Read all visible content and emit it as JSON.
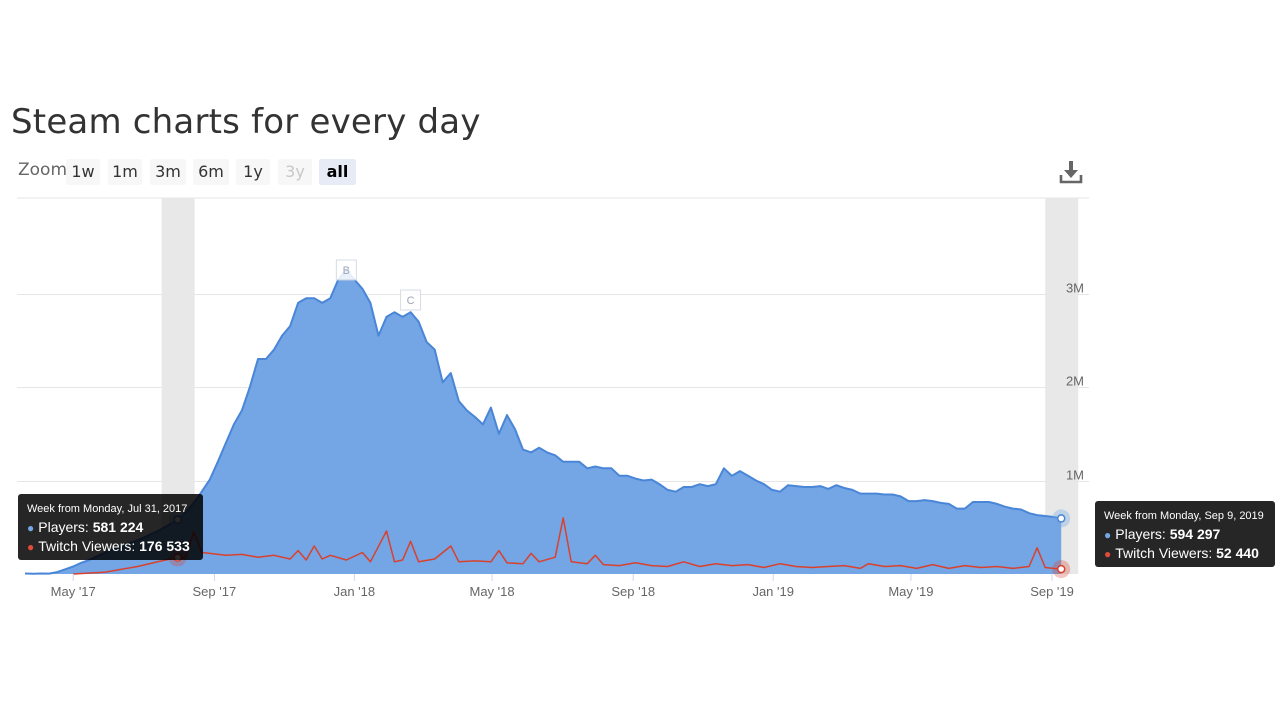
{
  "page": {
    "title": "Steam charts for every day"
  },
  "zoom": {
    "label": "Zoom",
    "buttons": [
      {
        "label": "1w",
        "state": "normal"
      },
      {
        "label": "1m",
        "state": "normal"
      },
      {
        "label": "3m",
        "state": "normal"
      },
      {
        "label": "6m",
        "state": "normal"
      },
      {
        "label": "1y",
        "state": "normal"
      },
      {
        "label": "3y",
        "state": "disabled"
      },
      {
        "label": "all",
        "state": "active"
      }
    ]
  },
  "export": {
    "icon": "download-icon"
  },
  "colors": {
    "players_line": "#4a86d8",
    "players_fill": "#74a5e4",
    "twitch_line": "#d9412e",
    "grid": "#e6e6e6",
    "axis_text": "#666666",
    "crosshair": "#e8e8e8"
  },
  "chart_data": {
    "type": "area",
    "title": "",
    "x_tick_labels": [
      "May '17",
      "Sep '17",
      "Jan '18",
      "May '18",
      "Sep '18",
      "Jan '19",
      "May '19",
      "Sep '19"
    ],
    "y_tick_labels": [
      "1M",
      "2M",
      "3M"
    ],
    "y_ticks": [
      1000000,
      2000000,
      3000000
    ],
    "ylim": [
      0,
      4000000
    ],
    "y_axis_side": "right",
    "grid": true,
    "flags": [
      "B",
      "C"
    ],
    "flag_dates": [
      "2017-12-25",
      "2018-02-19"
    ],
    "series": [
      {
        "name": "Players",
        "points": [
          [
            "2017-03-20",
            5000
          ],
          [
            "2017-03-27",
            2000
          ],
          [
            "2017-04-03",
            5000
          ],
          [
            "2017-04-10",
            4000
          ],
          [
            "2017-04-17",
            20000
          ],
          [
            "2017-04-24",
            50000
          ],
          [
            "2017-05-01",
            80000
          ],
          [
            "2017-05-08",
            120000
          ],
          [
            "2017-05-15",
            150000
          ],
          [
            "2017-05-22",
            190000
          ],
          [
            "2017-05-29",
            230000
          ],
          [
            "2017-06-05",
            270000
          ],
          [
            "2017-06-12",
            300000
          ],
          [
            "2017-06-19",
            330000
          ],
          [
            "2017-06-26",
            360000
          ],
          [
            "2017-07-03",
            400000
          ],
          [
            "2017-07-10",
            440000
          ],
          [
            "2017-07-17",
            480000
          ],
          [
            "2017-07-24",
            530000
          ],
          [
            "2017-07-31",
            581224
          ],
          [
            "2017-08-07",
            660000
          ],
          [
            "2017-08-14",
            760000
          ],
          [
            "2017-08-21",
            880000
          ],
          [
            "2017-08-28",
            1010000
          ],
          [
            "2017-09-04",
            1200000
          ],
          [
            "2017-09-11",
            1400000
          ],
          [
            "2017-09-18",
            1600000
          ],
          [
            "2017-09-25",
            1750000
          ],
          [
            "2017-10-02",
            2000000
          ],
          [
            "2017-10-09",
            2300000
          ],
          [
            "2017-10-16",
            2300000
          ],
          [
            "2017-10-23",
            2400000
          ],
          [
            "2017-10-30",
            2550000
          ],
          [
            "2017-11-06",
            2650000
          ],
          [
            "2017-11-13",
            2900000
          ],
          [
            "2017-11-20",
            2950000
          ],
          [
            "2017-11-27",
            2950000
          ],
          [
            "2017-12-04",
            2900000
          ],
          [
            "2017-12-11",
            2950000
          ],
          [
            "2017-12-18",
            3150000
          ],
          [
            "2017-12-25",
            3250000
          ],
          [
            "2018-01-01",
            3150000
          ],
          [
            "2018-01-08",
            3050000
          ],
          [
            "2018-01-15",
            2900000
          ],
          [
            "2018-01-22",
            2550000
          ],
          [
            "2018-01-29",
            2750000
          ],
          [
            "2018-02-05",
            2800000
          ],
          [
            "2018-02-12",
            2750000
          ],
          [
            "2018-02-19",
            2800000
          ],
          [
            "2018-02-26",
            2700000
          ],
          [
            "2018-03-05",
            2480000
          ],
          [
            "2018-03-12",
            2400000
          ],
          [
            "2018-03-19",
            2050000
          ],
          [
            "2018-03-26",
            2150000
          ],
          [
            "2018-04-02",
            1850000
          ],
          [
            "2018-04-09",
            1750000
          ],
          [
            "2018-04-16",
            1680000
          ],
          [
            "2018-04-23",
            1600000
          ],
          [
            "2018-04-30",
            1780000
          ],
          [
            "2018-05-07",
            1500000
          ],
          [
            "2018-05-14",
            1700000
          ],
          [
            "2018-05-21",
            1550000
          ],
          [
            "2018-05-28",
            1330000
          ],
          [
            "2018-06-04",
            1300000
          ],
          [
            "2018-06-11",
            1350000
          ],
          [
            "2018-06-18",
            1300000
          ],
          [
            "2018-06-25",
            1270000
          ],
          [
            "2018-07-02",
            1200000
          ],
          [
            "2018-07-09",
            1200000
          ],
          [
            "2018-07-16",
            1200000
          ],
          [
            "2018-07-23",
            1130000
          ],
          [
            "2018-07-30",
            1150000
          ],
          [
            "2018-08-06",
            1130000
          ],
          [
            "2018-08-13",
            1130000
          ],
          [
            "2018-08-20",
            1050000
          ],
          [
            "2018-08-27",
            1050000
          ],
          [
            "2018-09-03",
            1020000
          ],
          [
            "2018-09-10",
            1000000
          ],
          [
            "2018-09-17",
            1010000
          ],
          [
            "2018-09-24",
            960000
          ],
          [
            "2018-10-01",
            900000
          ],
          [
            "2018-10-08",
            880000
          ],
          [
            "2018-10-15",
            930000
          ],
          [
            "2018-10-22",
            930000
          ],
          [
            "2018-10-29",
            960000
          ],
          [
            "2018-11-05",
            940000
          ],
          [
            "2018-11-12",
            960000
          ],
          [
            "2018-11-19",
            1130000
          ],
          [
            "2018-11-26",
            1050000
          ],
          [
            "2018-12-03",
            1100000
          ],
          [
            "2018-12-10",
            1050000
          ],
          [
            "2018-12-17",
            1000000
          ],
          [
            "2018-12-24",
            960000
          ],
          [
            "2018-12-31",
            900000
          ],
          [
            "2019-01-07",
            880000
          ],
          [
            "2019-01-14",
            950000
          ],
          [
            "2019-01-21",
            940000
          ],
          [
            "2019-01-28",
            930000
          ],
          [
            "2019-02-04",
            930000
          ],
          [
            "2019-02-11",
            940000
          ],
          [
            "2019-02-18",
            910000
          ],
          [
            "2019-02-25",
            950000
          ],
          [
            "2019-03-04",
            920000
          ],
          [
            "2019-03-11",
            900000
          ],
          [
            "2019-03-18",
            860000
          ],
          [
            "2019-03-25",
            860000
          ],
          [
            "2019-04-01",
            860000
          ],
          [
            "2019-04-08",
            850000
          ],
          [
            "2019-04-15",
            850000
          ],
          [
            "2019-04-22",
            830000
          ],
          [
            "2019-04-29",
            780000
          ],
          [
            "2019-05-06",
            780000
          ],
          [
            "2019-05-13",
            790000
          ],
          [
            "2019-05-20",
            780000
          ],
          [
            "2019-05-27",
            760000
          ],
          [
            "2019-06-03",
            750000
          ],
          [
            "2019-06-10",
            700000
          ],
          [
            "2019-06-17",
            700000
          ],
          [
            "2019-06-24",
            770000
          ],
          [
            "2019-07-01",
            770000
          ],
          [
            "2019-07-08",
            770000
          ],
          [
            "2019-07-15",
            750000
          ],
          [
            "2019-07-22",
            720000
          ],
          [
            "2019-07-29",
            700000
          ],
          [
            "2019-08-05",
            690000
          ],
          [
            "2019-08-12",
            650000
          ],
          [
            "2019-08-19",
            630000
          ],
          [
            "2019-08-26",
            620000
          ],
          [
            "2019-09-02",
            610000
          ],
          [
            "2019-09-09",
            594297
          ]
        ]
      },
      {
        "name": "Twitch Viewers",
        "points": [
          [
            "2017-05-01",
            0
          ],
          [
            "2017-05-29",
            20000
          ],
          [
            "2017-06-26",
            80000
          ],
          [
            "2017-07-17",
            140000
          ],
          [
            "2017-07-31",
            176533
          ],
          [
            "2017-08-07",
            170000
          ],
          [
            "2017-08-14",
            450000
          ],
          [
            "2017-08-21",
            230000
          ],
          [
            "2017-08-28",
            220000
          ],
          [
            "2017-09-11",
            200000
          ],
          [
            "2017-09-25",
            210000
          ],
          [
            "2017-10-09",
            180000
          ],
          [
            "2017-10-23",
            200000
          ],
          [
            "2017-11-06",
            160000
          ],
          [
            "2017-11-13",
            250000
          ],
          [
            "2017-11-20",
            150000
          ],
          [
            "2017-11-27",
            300000
          ],
          [
            "2017-12-04",
            160000
          ],
          [
            "2017-12-11",
            200000
          ],
          [
            "2017-12-25",
            150000
          ],
          [
            "2018-01-08",
            230000
          ],
          [
            "2018-01-15",
            130000
          ],
          [
            "2018-01-29",
            460000
          ],
          [
            "2018-02-05",
            130000
          ],
          [
            "2018-02-12",
            150000
          ],
          [
            "2018-02-19",
            350000
          ],
          [
            "2018-02-26",
            130000
          ],
          [
            "2018-03-12",
            160000
          ],
          [
            "2018-03-26",
            300000
          ],
          [
            "2018-04-02",
            130000
          ],
          [
            "2018-04-16",
            140000
          ],
          [
            "2018-04-30",
            130000
          ],
          [
            "2018-05-07",
            250000
          ],
          [
            "2018-05-14",
            120000
          ],
          [
            "2018-05-28",
            110000
          ],
          [
            "2018-06-04",
            220000
          ],
          [
            "2018-06-11",
            130000
          ],
          [
            "2018-06-25",
            180000
          ],
          [
            "2018-07-02",
            600000
          ],
          [
            "2018-07-09",
            130000
          ],
          [
            "2018-07-23",
            110000
          ],
          [
            "2018-07-30",
            200000
          ],
          [
            "2018-08-06",
            100000
          ],
          [
            "2018-08-20",
            90000
          ],
          [
            "2018-09-03",
            120000
          ],
          [
            "2018-09-17",
            90000
          ],
          [
            "2018-10-01",
            80000
          ],
          [
            "2018-10-15",
            130000
          ],
          [
            "2018-10-29",
            80000
          ],
          [
            "2018-11-12",
            110000
          ],
          [
            "2018-11-26",
            90000
          ],
          [
            "2018-12-10",
            100000
          ],
          [
            "2018-12-24",
            70000
          ],
          [
            "2019-01-07",
            110000
          ],
          [
            "2019-01-21",
            80000
          ],
          [
            "2019-02-04",
            70000
          ],
          [
            "2019-02-18",
            80000
          ],
          [
            "2019-03-04",
            90000
          ],
          [
            "2019-03-18",
            60000
          ],
          [
            "2019-03-25",
            110000
          ],
          [
            "2019-04-08",
            80000
          ],
          [
            "2019-04-22",
            90000
          ],
          [
            "2019-05-06",
            60000
          ],
          [
            "2019-05-20",
            100000
          ],
          [
            "2019-06-03",
            60000
          ],
          [
            "2019-06-17",
            90000
          ],
          [
            "2019-07-01",
            70000
          ],
          [
            "2019-07-15",
            80000
          ],
          [
            "2019-07-29",
            60000
          ],
          [
            "2019-08-12",
            80000
          ],
          [
            "2019-08-19",
            280000
          ],
          [
            "2019-08-26",
            70000
          ],
          [
            "2019-09-02",
            60000
          ],
          [
            "2019-09-09",
            52440
          ]
        ]
      }
    ],
    "tooltips": [
      {
        "header": "Week from Monday, Jul 31, 2017",
        "players_label": "Players:",
        "players_value": "581 224",
        "twitch_label": "Twitch Viewers:",
        "twitch_value": "176 533"
      },
      {
        "header": "Week from Monday, Sep 9, 2019",
        "players_label": "Players:",
        "players_value": "594 297",
        "twitch_label": "Twitch Viewers:",
        "twitch_value": "52 440"
      }
    ]
  }
}
